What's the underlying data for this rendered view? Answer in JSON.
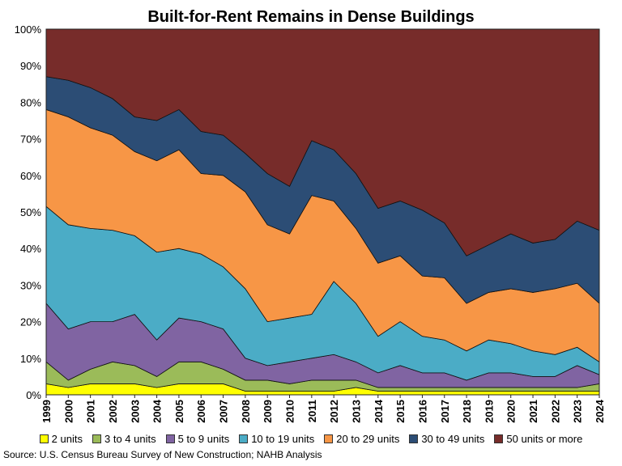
{
  "chart_data": {
    "type": "area",
    "stacked": true,
    "normalized": true,
    "title": "Built-for-Rent Remains in Dense Buildings",
    "xlabel": "",
    "ylabel": "",
    "ylim": [
      0,
      100
    ],
    "y_ticks": [
      "0%",
      "10%",
      "20%",
      "30%",
      "40%",
      "50%",
      "60%",
      "70%",
      "80%",
      "90%",
      "100%"
    ],
    "categories": [
      "1999",
      "2000",
      "2001",
      "2002",
      "2003",
      "2004",
      "2005",
      "2006",
      "2007",
      "2008",
      "2009",
      "2010",
      "2011",
      "2012",
      "2013",
      "2014",
      "2015",
      "2016",
      "2017",
      "2018",
      "2019",
      "2020",
      "2021",
      "2022",
      "2023",
      "2024"
    ],
    "series": [
      {
        "name": "2 units",
        "color": "#FFFF00",
        "values": [
          3,
          2,
          3,
          3,
          3,
          2,
          3,
          3,
          3,
          1,
          1,
          1,
          1,
          1,
          2,
          1,
          1,
          1,
          1,
          1,
          1,
          1,
          1,
          1,
          1,
          1
        ]
      },
      {
        "name": "3 to 4 units",
        "color": "#9BBB59",
        "values": [
          6,
          2,
          4,
          6,
          5,
          3,
          6,
          6,
          4,
          3,
          3,
          2,
          3,
          3,
          2,
          1,
          1,
          1,
          1,
          1,
          1,
          1,
          1,
          1,
          1,
          2
        ]
      },
      {
        "name": "5 to 9 units",
        "color": "#8064A2",
        "values": [
          16,
          14,
          13,
          11,
          14,
          10,
          12,
          11,
          11,
          6,
          4,
          6,
          6,
          7,
          5,
          4,
          6,
          4,
          4,
          2,
          4,
          4,
          3,
          3,
          6,
          2.5
        ]
      },
      {
        "name": "10 to 19 units",
        "color": "#4BACC6",
        "values": [
          26.5,
          28.5,
          25.5,
          25,
          21.5,
          24,
          19,
          18.5,
          17,
          19,
          12,
          12,
          12,
          20,
          16,
          10,
          12,
          10,
          9,
          8,
          9,
          8,
          7,
          6,
          5,
          3.5
        ]
      },
      {
        "name": "20 to 29 units",
        "color": "#F79646",
        "values": [
          26.5,
          29.5,
          27.5,
          26,
          23,
          25,
          27,
          22,
          25,
          26.5,
          26.5,
          23,
          32.5,
          22,
          20.5,
          20,
          18,
          16.5,
          17,
          13,
          13,
          15,
          16,
          18,
          17.5,
          16
        ]
      },
      {
        "name": "30 to 49 units",
        "color": "#2C4D75",
        "values": [
          9,
          10,
          11,
          10,
          9.5,
          11,
          11,
          11.5,
          11,
          10.5,
          14,
          13,
          15,
          14,
          15,
          15,
          15,
          18,
          15,
          13,
          13,
          15,
          13.5,
          13.5,
          17,
          20
        ]
      },
      {
        "name": "50 units or more",
        "color": "#772C2A",
        "values": [
          13,
          14,
          16,
          19,
          24,
          25,
          22,
          28,
          29,
          34,
          39.5,
          43,
          30.5,
          33,
          39.5,
          49,
          47,
          49.5,
          53,
          62,
          59,
          56,
          58.5,
          57.5,
          52.5,
          55
        ]
      }
    ],
    "legend_position": "bottom",
    "grid": false
  },
  "source": "Source: U.S. Census Bureau Survey of New Construction; NAHB Analysis"
}
